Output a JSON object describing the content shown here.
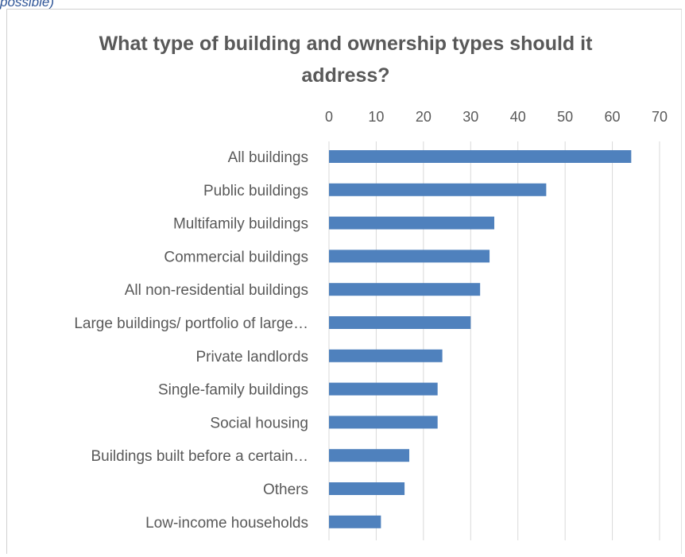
{
  "caption": "possible)",
  "chart_data": {
    "type": "bar",
    "orientation": "horizontal",
    "title": "What type of building and ownership types should it address?",
    "categories": [
      "All buildings",
      "Public buildings",
      "Multifamily buildings",
      "Commercial buildings",
      "All non-residential buildings",
      "Large buildings/ portfolio of large…",
      "Private landlords",
      "Single-family buildings",
      "Social housing",
      "Buildings built before a certain…",
      "Others",
      "Low-income households"
    ],
    "values": [
      64,
      46,
      35,
      34,
      32,
      30,
      24,
      23,
      23,
      17,
      16,
      11
    ],
    "xlim": [
      0,
      70
    ],
    "xticks": [
      0,
      10,
      20,
      30,
      40,
      50,
      60,
      70
    ],
    "axis_position": "top",
    "grid": true,
    "legend": "none",
    "bar_color": "#4f81bd",
    "grid_color": "#d9d9d9"
  }
}
